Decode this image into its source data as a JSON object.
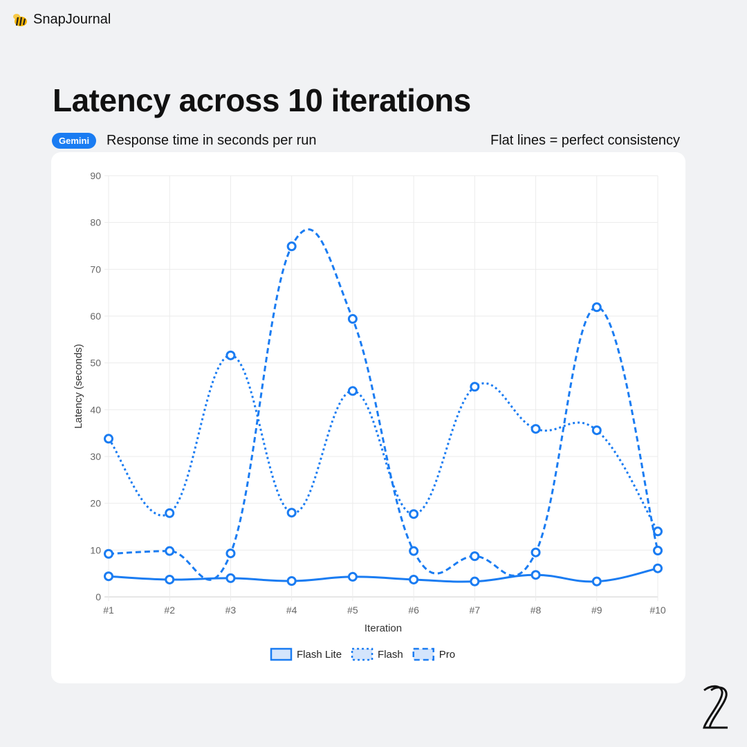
{
  "brand": {
    "name": "SnapJournal"
  },
  "title": "Latency across 10 iterations",
  "badge": "Gemini",
  "subtitle": "Response time in seconds per run",
  "note": "Flat lines = perfect consistency",
  "colors": {
    "accent": "#1a7cf2"
  },
  "chart_data": {
    "type": "line",
    "xlabel": "Iteration",
    "ylabel": "Latency (seconds)",
    "ylim": [
      0,
      90
    ],
    "yticks": [
      0,
      10,
      20,
      30,
      40,
      50,
      60,
      70,
      80,
      90
    ],
    "categories": [
      "#1",
      "#2",
      "#3",
      "#4",
      "#5",
      "#6",
      "#7",
      "#8",
      "#9",
      "#10"
    ],
    "grid": true,
    "legend": "bottom",
    "series": [
      {
        "name": "Flash Lite",
        "style": "solid",
        "values": [
          4.4,
          3.7,
          4.0,
          3.4,
          4.3,
          3.7,
          3.3,
          4.7,
          3.3,
          6.1
        ]
      },
      {
        "name": "Flash",
        "style": "dotted",
        "values": [
          33.8,
          17.9,
          51.6,
          18.0,
          44.0,
          17.7,
          44.9,
          35.9,
          35.6,
          14.0
        ]
      },
      {
        "name": "Pro",
        "style": "dashed",
        "values": [
          9.2,
          9.8,
          9.3,
          74.9,
          59.4,
          9.8,
          8.7,
          9.5,
          61.9,
          9.9
        ]
      }
    ]
  }
}
